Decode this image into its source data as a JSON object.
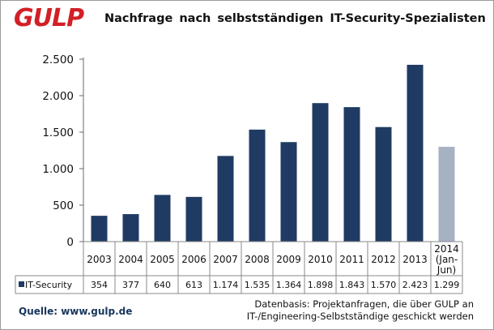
{
  "logo": {
    "text": "GULP"
  },
  "chart_data": {
    "type": "bar",
    "title": "Nachfrage nach  selbstständigen  IT-Security-Spezialisten",
    "categories": [
      "2003",
      "2004",
      "2005",
      "2006",
      "2007",
      "2008",
      "2009",
      "2010",
      "2011",
      "2012",
      "2013",
      "2014 (Jan-Jun)"
    ],
    "category_lines": [
      [
        "2003"
      ],
      [
        "2004"
      ],
      [
        "2005"
      ],
      [
        "2006"
      ],
      [
        "2007"
      ],
      [
        "2008"
      ],
      [
        "2009"
      ],
      [
        "2010"
      ],
      [
        "2011"
      ],
      [
        "2012"
      ],
      [
        "2013"
      ],
      [
        "2014",
        "(Jan-",
        "Jun)"
      ]
    ],
    "series": [
      {
        "name": "IT-Security",
        "values": [
          354,
          377,
          640,
          613,
          1174,
          1535,
          1364,
          1898,
          1843,
          1570,
          2423,
          1299
        ],
        "value_labels": [
          "354",
          "377",
          "640",
          "613",
          "1.174",
          "1.535",
          "1.364",
          "1.898",
          "1.843",
          "1.570",
          "2.423",
          "1.299"
        ]
      }
    ],
    "ylim": [
      0,
      2500
    ],
    "yticks": [
      0,
      500,
      1000,
      1500,
      2000,
      2500
    ],
    "ytick_labels": [
      "0",
      "500",
      "1.000",
      "1.500",
      "2.000",
      "2.500"
    ],
    "grid": false,
    "legend": "data-table",
    "colors": {
      "bar": "#1f3b63",
      "bar_partial": "#a6b2c2"
    }
  },
  "footer": {
    "source": "Quelle: www.gulp.de",
    "datenbasis_line1": "Datenbasis: Projektanfragen, die über GULP an",
    "datenbasis_line2": "IT-/Engineering-Selbstständige geschickt werden"
  }
}
